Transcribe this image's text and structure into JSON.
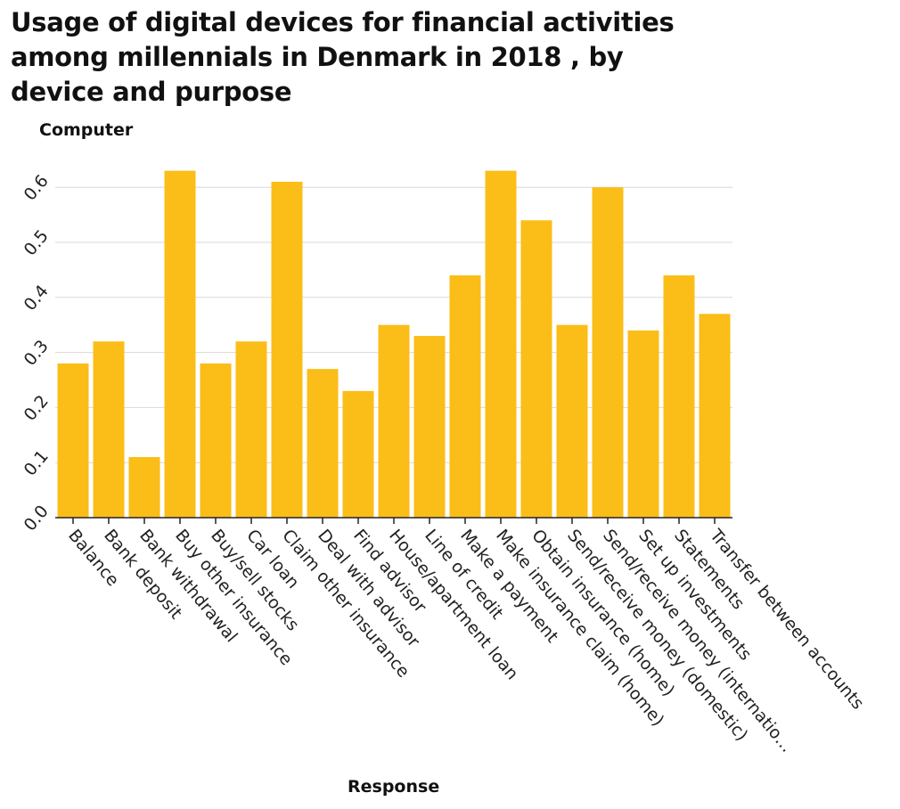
{
  "chart_data": {
    "type": "bar",
    "title": "Usage of digital devices for financial activities among millennials in Denmark in 2018 , by device and purpose",
    "xlabel": "Response",
    "ylabel": "Computer",
    "ylim": [
      0,
      0.65
    ],
    "yticks": [
      "0.0",
      "0.1",
      "0.2",
      "0.3",
      "0.4",
      "0.5",
      "0.6"
    ],
    "grid": "horizontal",
    "bar_color": "#fbbd17",
    "categories": [
      "Balance",
      "Bank deposit",
      "Bank withdrawal",
      "Buy other insurance",
      "Buy/sell stocks",
      "Car loan",
      "Claim other insurance",
      "Deal with advisor",
      "Find advisor",
      "House/apartment loan",
      "Line of credit",
      "Make a payment",
      "Make insurance claim (home)",
      "Obtain insurance (home)",
      "Send/receive money (domestic)",
      "Send/receive money (internatio…",
      "Set up investments",
      "Statements",
      "Transfer between accounts"
    ],
    "values": [
      0.28,
      0.32,
      0.11,
      0.63,
      0.28,
      0.32,
      0.61,
      0.27,
      0.23,
      0.35,
      0.33,
      0.44,
      0.63,
      0.54,
      0.35,
      0.6,
      0.34,
      0.44,
      0.37
    ]
  }
}
